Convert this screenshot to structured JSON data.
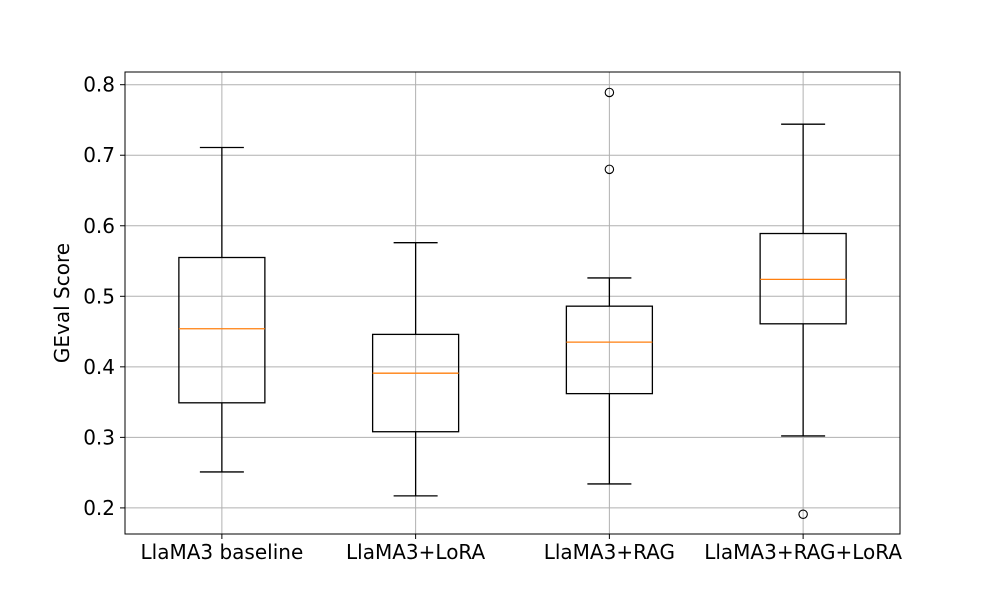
{
  "chart_data": {
    "type": "box",
    "title": "",
    "xlabel": "",
    "ylabel": "GEval Score",
    "ylim": [
      0.163,
      0.818
    ],
    "yticks": [
      0.2,
      0.3,
      0.4,
      0.5,
      0.6,
      0.7,
      0.8
    ],
    "ytick_labels": [
      "0.2",
      "0.3",
      "0.4",
      "0.5",
      "0.6",
      "0.7",
      "0.8"
    ],
    "grid": true,
    "median_color": "#ff7f0e",
    "box_color": "#000000",
    "categories": [
      "LlaMA3 baseline",
      "LlaMA3+LoRA",
      "LlaMA3+RAG",
      "LlaMA3+RAG+LoRA"
    ],
    "boxes": [
      {
        "label": "LlaMA3 baseline",
        "whisker_low": 0.251,
        "q1": 0.349,
        "median": 0.454,
        "q3": 0.555,
        "whisker_high": 0.711,
        "outliers": []
      },
      {
        "label": "LlaMA3+LoRA",
        "whisker_low": 0.217,
        "q1": 0.308,
        "median": 0.391,
        "q3": 0.446,
        "whisker_high": 0.576,
        "outliers": []
      },
      {
        "label": "LlaMA3+RAG",
        "whisker_low": 0.234,
        "q1": 0.362,
        "median": 0.435,
        "q3": 0.486,
        "whisker_high": 0.526,
        "outliers": [
          0.68,
          0.789
        ]
      },
      {
        "label": "LlaMA3+RAG+LoRA",
        "whisker_low": 0.302,
        "q1": 0.461,
        "median": 0.524,
        "q3": 0.589,
        "whisker_high": 0.744,
        "outliers": [
          0.191
        ]
      }
    ]
  }
}
